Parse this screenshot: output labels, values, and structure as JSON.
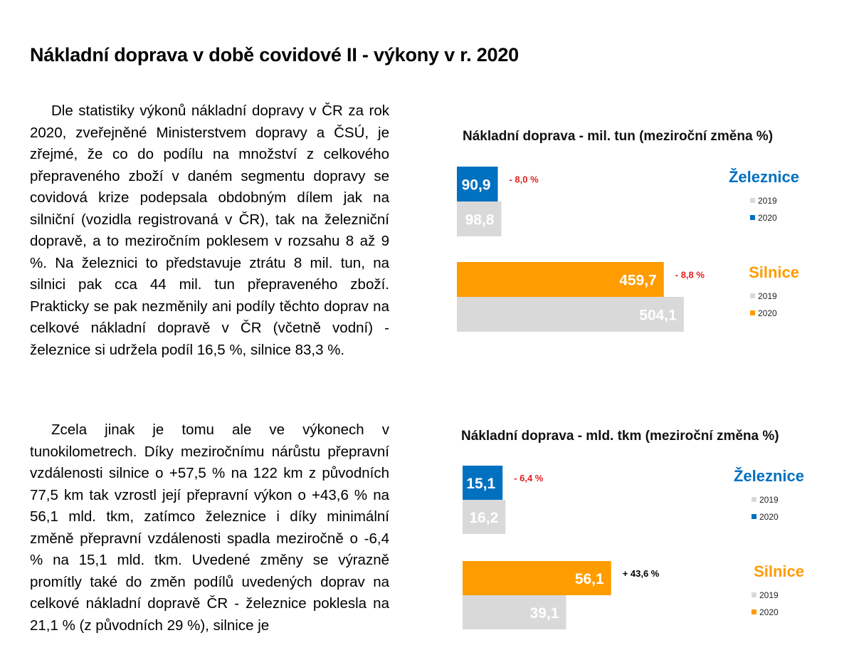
{
  "document": {
    "title": "Nákladní doprava v době covidové II - výkony v r. 2020",
    "paragraphs": [
      "Dle statistiky výkonů nákladní dopravy v ČR za rok 2020, zveřejněné Ministerstvem dopravy a ČSÚ, je zřejmé, že co do podílu na množství z celkového přepraveného zboží v daném segmentu dopravy se covidová krize podepsala obdobným dílem jak na silniční (vozidla registrovaná v ČR), tak na železniční dopravě, a to meziročním poklesem v rozsahu 8 až 9 %. Na železnici to představuje ztrátu 8 mil. tun, na silnici pak cca 44 mil. tun přepraveného zboží. Prakticky se pak nezměnily ani podíly těchto doprav na celkové nákladní dopravě v ČR (včetně vodní) - železnice si udržela podíl 16,5 %, silnice 83,3 %.",
      "Zcela jinak je tomu ale ve výkonech v tunokilometrech. Díky meziročnímu nárůstu přepravní vzdálenosti silnice o +57,5 % na 122 km z původních 77,5 km tak vzrostl její přepravní výkon o +43,6 % na 56,1 mld. tkm, zatímco železnice i díky minimální změně přepravní vzdálenosti spadla meziročně o -6,4 % na 15,1 mld. tkm. Uvedené změny se výrazně promítly také do změn podílů uvedených doprav na celkové nákladní dopravě ČR - železnice poklesla na 21,1 % (z původních 29 %), silnice je"
    ]
  },
  "chart_data": [
    {
      "type": "bar",
      "orientation": "horizontal",
      "title": "Nákladní doprava - mil. tun (meziroční změna %)",
      "groups": [
        {
          "name": "Železnice",
          "color": "#0070c0",
          "values": [
            {
              "year": "2020",
              "value": 90.9,
              "label": "90,9"
            },
            {
              "year": "2019",
              "value": 98.8,
              "label": "98,8"
            }
          ],
          "change": "- 8,0 %",
          "change_color": "#e02020",
          "legend": [
            "2019",
            "2020"
          ]
        },
        {
          "name": "Silnice",
          "color": "#ff9c00",
          "values": [
            {
              "year": "2020",
              "value": 459.7,
              "label": "459,7"
            },
            {
              "year": "2019",
              "value": 504.1,
              "label": "504,1"
            }
          ],
          "change": "- 8,8 %",
          "change_color": "#e02020",
          "legend": [
            "2019",
            "2020"
          ]
        }
      ],
      "colors": {
        "2019": "#d9d9d9"
      }
    },
    {
      "type": "bar",
      "orientation": "horizontal",
      "title": "Nákladní doprava - mld. tkm (meziroční změna %)",
      "groups": [
        {
          "name": "Železnice",
          "color": "#0070c0",
          "values": [
            {
              "year": "2020",
              "value": 15.1,
              "label": "15,1"
            },
            {
              "year": "2019",
              "value": 16.2,
              "label": "16,2"
            }
          ],
          "change": "- 6,4 %",
          "change_color": "#e02020",
          "legend": [
            "2019",
            "2020"
          ]
        },
        {
          "name": "Silnice",
          "color": "#ff9c00",
          "values": [
            {
              "year": "2020",
              "value": 56.1,
              "label": "56,1"
            },
            {
              "year": "2019",
              "value": 39.1,
              "label": "39,1"
            }
          ],
          "change": "+ 43,6 %",
          "change_color": "#000000",
          "legend": [
            "2019",
            "2020"
          ]
        }
      ],
      "colors": {
        "2019": "#d9d9d9"
      }
    }
  ]
}
